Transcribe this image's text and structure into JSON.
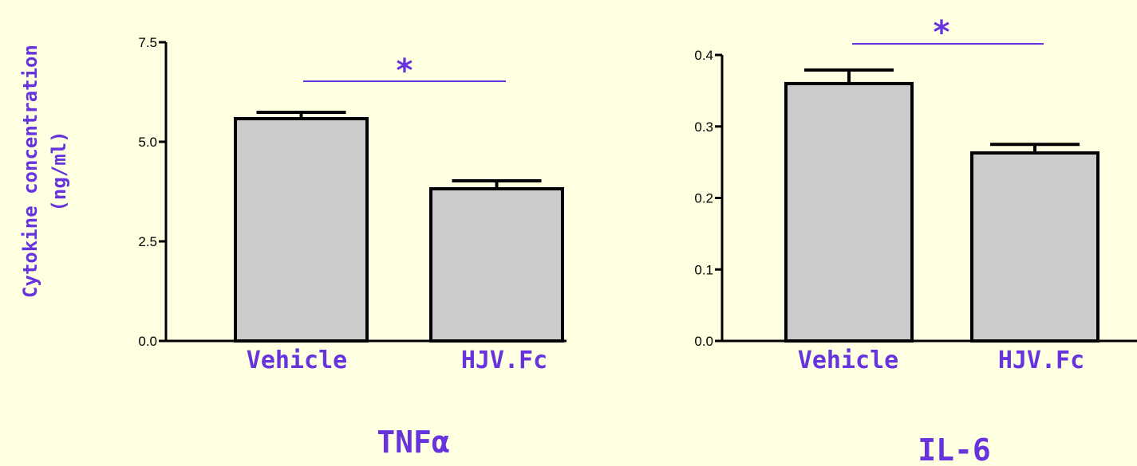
{
  "colors": {
    "background": "#ffffe1",
    "bar_fill": "#cbcbcb",
    "accent": "#6633dd"
  },
  "ylabel": {
    "line1": "Cytokine concentration",
    "line2": "(ng/ml)"
  },
  "chart_data": [
    {
      "type": "bar",
      "title": "TNFα",
      "categories": [
        "Vehicle",
        "HJV.Fc"
      ],
      "values": [
        5.58,
        3.82
      ],
      "errors": [
        0.16,
        0.2
      ],
      "ylim": [
        0,
        7.5
      ],
      "yticks": [
        0.0,
        2.5,
        5.0,
        7.5
      ],
      "ytick_labels": [
        "0.0",
        "2.5",
        "5.0",
        "7.5"
      ],
      "significance": "*"
    },
    {
      "type": "bar",
      "title": "IL-6",
      "categories": [
        "Vehicle",
        "HJV.Fc"
      ],
      "values": [
        0.36,
        0.263
      ],
      "errors": [
        0.019,
        0.012
      ],
      "ylim": [
        0,
        0.4
      ],
      "yticks": [
        0.0,
        0.1,
        0.2,
        0.3,
        0.4
      ],
      "ytick_labels": [
        "0.0",
        "0.1",
        "0.2",
        "0.3",
        "0.4"
      ],
      "significance": "*"
    }
  ]
}
